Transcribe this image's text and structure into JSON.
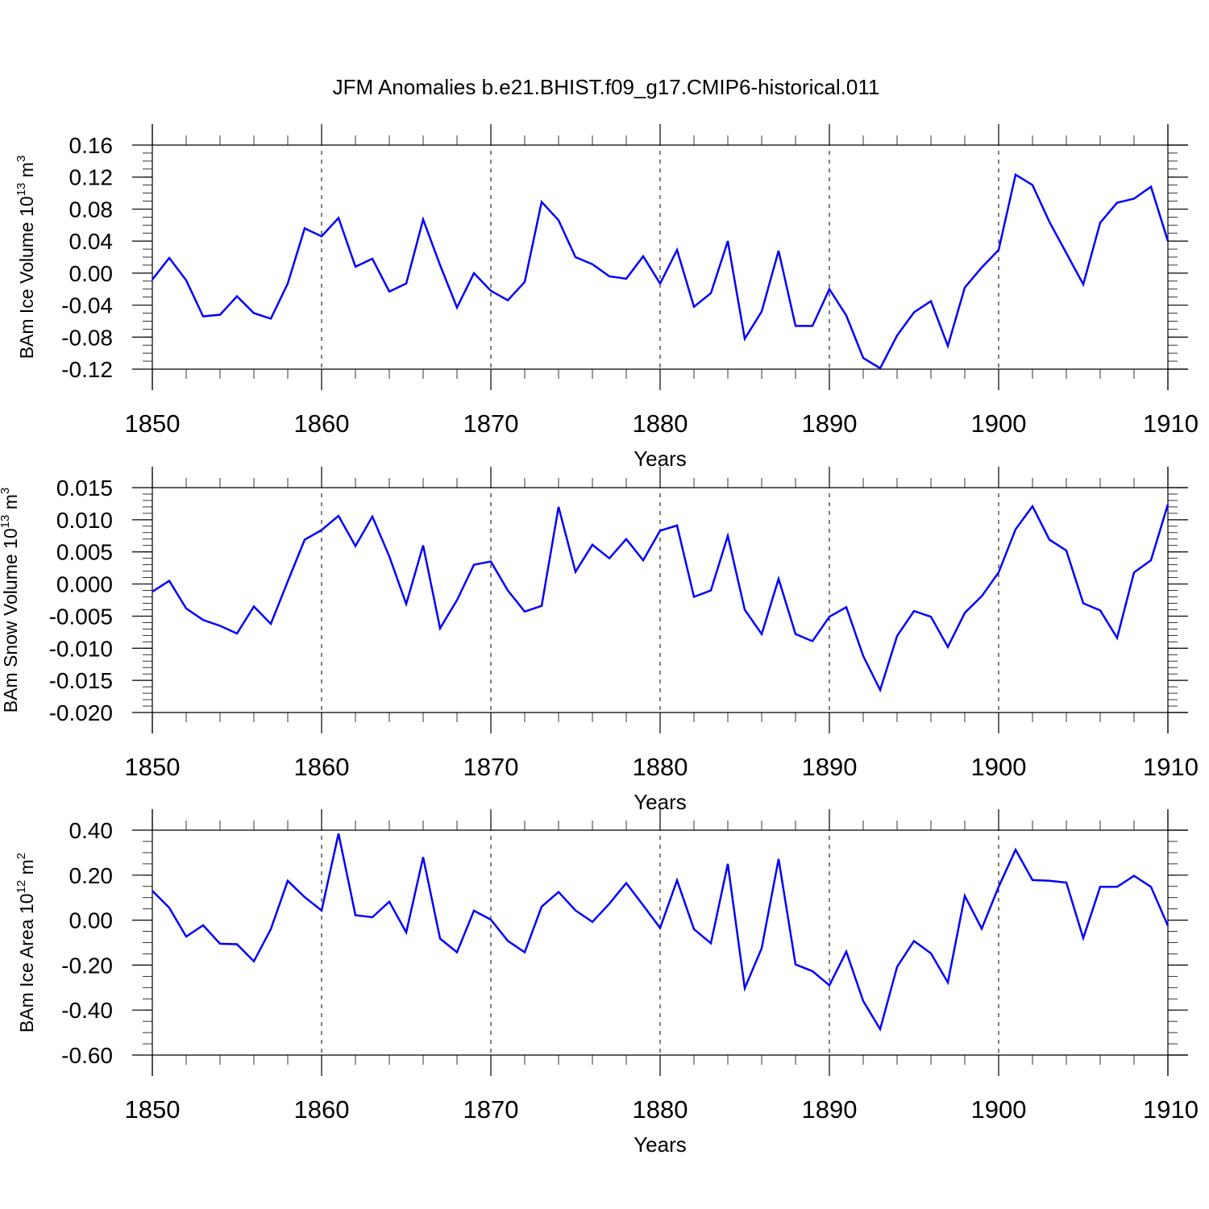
{
  "title": "JFM Anomalies b.e21.BHIST.f09_g17.CMIP6-historical.011",
  "chart_data": [
    {
      "type": "line",
      "ylabel": "BAm Ice Volume 10",
      "ylabel_exp": "13",
      "ylabel_unit": " m",
      "ylabel_unit_exp": "3",
      "xlabel": "Years",
      "xlim": [
        1850,
        1910
      ],
      "ylim": [
        -0.12,
        0.16
      ],
      "yticks": [
        -0.12,
        -0.08,
        -0.04,
        0.0,
        0.04,
        0.08,
        0.12,
        0.16
      ],
      "ytick_labels": [
        "-0.12",
        "-0.08",
        "-0.04",
        "0.00",
        "0.04",
        "0.08",
        "0.12",
        "0.16"
      ],
      "xticks": [
        1850,
        1860,
        1870,
        1880,
        1890,
        1900,
        1910
      ],
      "xtick_labels": [
        "1850",
        "1860",
        "1870",
        "1880",
        "1890",
        "1900",
        "1910"
      ],
      "grid": "vertical dashed at major x ticks",
      "color": "#0000ff",
      "x_start": 1850,
      "values": [
        -0.008,
        0.019,
        -0.009,
        -0.054,
        -0.052,
        -0.029,
        -0.05,
        -0.057,
        -0.013,
        0.056,
        0.046,
        0.069,
        0.008,
        0.018,
        -0.023,
        -0.013,
        0.067,
        0.01,
        -0.043,
        0.0,
        -0.022,
        -0.034,
        -0.011,
        0.089,
        0.066,
        0.02,
        0.011,
        -0.004,
        -0.007,
        0.021,
        -0.013,
        0.029,
        -0.042,
        -0.025,
        0.04,
        -0.082,
        -0.048,
        0.028,
        -0.066,
        -0.066,
        -0.02,
        -0.053,
        -0.106,
        -0.119,
        -0.078,
        -0.049,
        -0.035,
        -0.091,
        -0.018,
        0.007,
        0.029,
        0.123,
        0.11,
        0.064,
        0.025,
        -0.014,
        0.063,
        0.088,
        0.093,
        0.108,
        0.04
      ]
    },
    {
      "type": "line",
      "ylabel": "BAm Snow Volume 10",
      "ylabel_exp": "13",
      "ylabel_unit": " m",
      "ylabel_unit_exp": "3",
      "xlabel": "Years",
      "xlim": [
        1850,
        1910
      ],
      "ylim": [
        -0.02,
        0.015
      ],
      "yticks": [
        -0.02,
        -0.015,
        -0.01,
        -0.005,
        0.0,
        0.005,
        0.01,
        0.015
      ],
      "ytick_labels": [
        "-0.020",
        "-0.015",
        "-0.010",
        "-0.005",
        "0.000",
        "0.005",
        "0.010",
        "0.015"
      ],
      "xticks": [
        1850,
        1860,
        1870,
        1880,
        1890,
        1900,
        1910
      ],
      "xtick_labels": [
        "1850",
        "1860",
        "1870",
        "1880",
        "1890",
        "1900",
        "1910"
      ],
      "grid": "vertical dashed at major x ticks",
      "color": "#0000ff",
      "x_start": 1850,
      "values": [
        -0.0012,
        0.0005,
        -0.0038,
        -0.0056,
        -0.0065,
        -0.0077,
        -0.0035,
        -0.0062,
        0.0004,
        0.0069,
        0.0084,
        0.0106,
        0.0059,
        0.0105,
        0.0043,
        -0.0031,
        0.006,
        -0.0069,
        -0.0025,
        0.003,
        0.0035,
        -0.001,
        -0.0043,
        -0.0034,
        0.012,
        0.0019,
        0.0061,
        0.004,
        0.007,
        0.0037,
        0.0083,
        0.0091,
        -0.002,
        -0.001,
        0.0075,
        -0.004,
        -0.0078,
        0.0008,
        -0.0078,
        -0.0089,
        -0.0051,
        -0.0036,
        -0.0112,
        -0.0165,
        -0.0081,
        -0.0042,
        -0.0051,
        -0.0098,
        -0.0045,
        -0.0019,
        0.0018,
        0.0085,
        0.0121,
        0.0069,
        0.0052,
        -0.003,
        -0.0041,
        -0.0084,
        0.0018,
        0.0037,
        0.0124
      ]
    },
    {
      "type": "line",
      "ylabel": "BAm Ice Area 10",
      "ylabel_exp": "12",
      "ylabel_unit": " m",
      "ylabel_unit_exp": "2",
      "xlabel": "Years",
      "xlim": [
        1850,
        1910
      ],
      "ylim": [
        -0.6,
        0.4
      ],
      "yticks": [
        -0.6,
        -0.4,
        -0.2,
        0.0,
        0.2,
        0.4
      ],
      "ytick_labels": [
        "-0.60",
        "-0.40",
        "-0.20",
        "0.00",
        "0.20",
        "0.40"
      ],
      "xticks": [
        1850,
        1860,
        1870,
        1880,
        1890,
        1900,
        1910
      ],
      "xtick_labels": [
        "1850",
        "1860",
        "1870",
        "1880",
        "1890",
        "1900",
        "1910"
      ],
      "grid": "vertical dashed at major x ticks",
      "color": "#0000ff",
      "x_start": 1850,
      "values": [
        0.13,
        0.055,
        -0.073,
        -0.023,
        -0.105,
        -0.107,
        -0.183,
        -0.04,
        0.175,
        0.102,
        0.043,
        0.385,
        0.022,
        0.013,
        0.082,
        -0.055,
        0.28,
        -0.082,
        -0.143,
        0.042,
        0.002,
        -0.092,
        -0.143,
        0.06,
        0.125,
        0.043,
        -0.008,
        0.073,
        0.165,
        0.066,
        -0.035,
        0.177,
        -0.04,
        -0.103,
        0.25,
        -0.303,
        -0.125,
        0.272,
        -0.197,
        -0.227,
        -0.29,
        -0.14,
        -0.36,
        -0.485,
        -0.208,
        -0.093,
        -0.148,
        -0.277,
        0.108,
        -0.038,
        0.148,
        0.313,
        0.178,
        0.175,
        0.167,
        -0.08,
        0.148,
        0.148,
        0.197,
        0.148,
        -0.025
      ]
    }
  ]
}
